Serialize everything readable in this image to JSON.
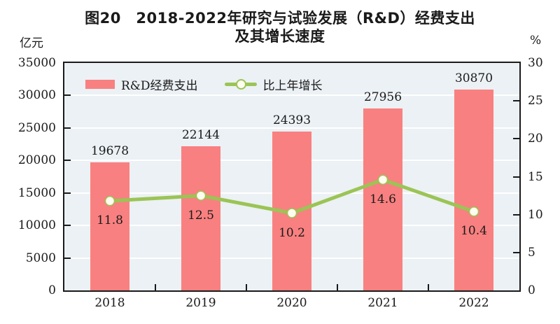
{
  "title": {
    "line1": "图20　2018-2022年研究与试验发展（R&D）经费支出",
    "line2": "及其增长速度"
  },
  "axes": {
    "left_unit": "亿元",
    "right_unit": "%"
  },
  "legend": {
    "bar_label": "R&D经费支出",
    "line_label": "比上年增长"
  },
  "colors": {
    "bar": "#f98080",
    "line": "#9bc455",
    "marker_fill": "#fdfdf0",
    "plot_bg": "#ebf1f4",
    "grid": "#ffffff",
    "axis": "#1a1a1a",
    "text": "#1a1a1a"
  },
  "chart_data": {
    "type": "bar",
    "title": "图20 2018-2022年研究与试验发展（R&D）经费支出及其增长速度",
    "categories": [
      "2018",
      "2019",
      "2020",
      "2021",
      "2022"
    ],
    "series": [
      {
        "name": "R&D经费支出",
        "type": "bar",
        "axis": "left",
        "unit": "亿元",
        "values": [
          19678,
          22144,
          24393,
          27956,
          30870
        ]
      },
      {
        "name": "比上年增长",
        "type": "line",
        "axis": "right",
        "unit": "%",
        "values": [
          11.8,
          12.5,
          10.2,
          14.6,
          10.4
        ]
      }
    ],
    "left_axis": {
      "label": "亿元",
      "min": 0,
      "max": 35000,
      "step": 5000
    },
    "right_axis": {
      "label": "%",
      "min": 0,
      "max": 30,
      "step": 5
    },
    "grid": true,
    "legend_position": "inside-top-left"
  }
}
